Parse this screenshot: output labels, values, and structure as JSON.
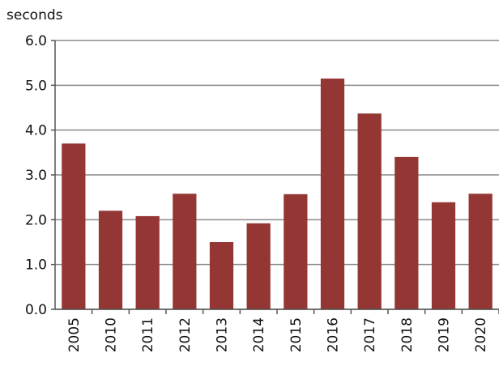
{
  "chart_data": {
    "type": "bar",
    "y_label": "seconds",
    "categories": [
      "2005",
      "2010",
      "2011",
      "2012",
      "2013",
      "2014",
      "2015",
      "2016",
      "2017",
      "2018",
      "2019",
      "2020"
    ],
    "values": [
      3.7,
      2.2,
      2.08,
      2.58,
      1.5,
      1.92,
      2.57,
      5.15,
      4.37,
      3.4,
      2.39,
      2.58
    ],
    "color": "#943634",
    "ylim": [
      0,
      6
    ],
    "yticks": [
      {
        "value": 0,
        "label": "0.0"
      },
      {
        "value": 1,
        "label": "1.0"
      },
      {
        "value": 2,
        "label": "2.0"
      },
      {
        "value": 3,
        "label": "3.0"
      },
      {
        "value": 4,
        "label": "4.0"
      },
      {
        "value": 5,
        "label": "5.0"
      },
      {
        "value": 6,
        "label": "6.0"
      }
    ],
    "grid": true
  }
}
